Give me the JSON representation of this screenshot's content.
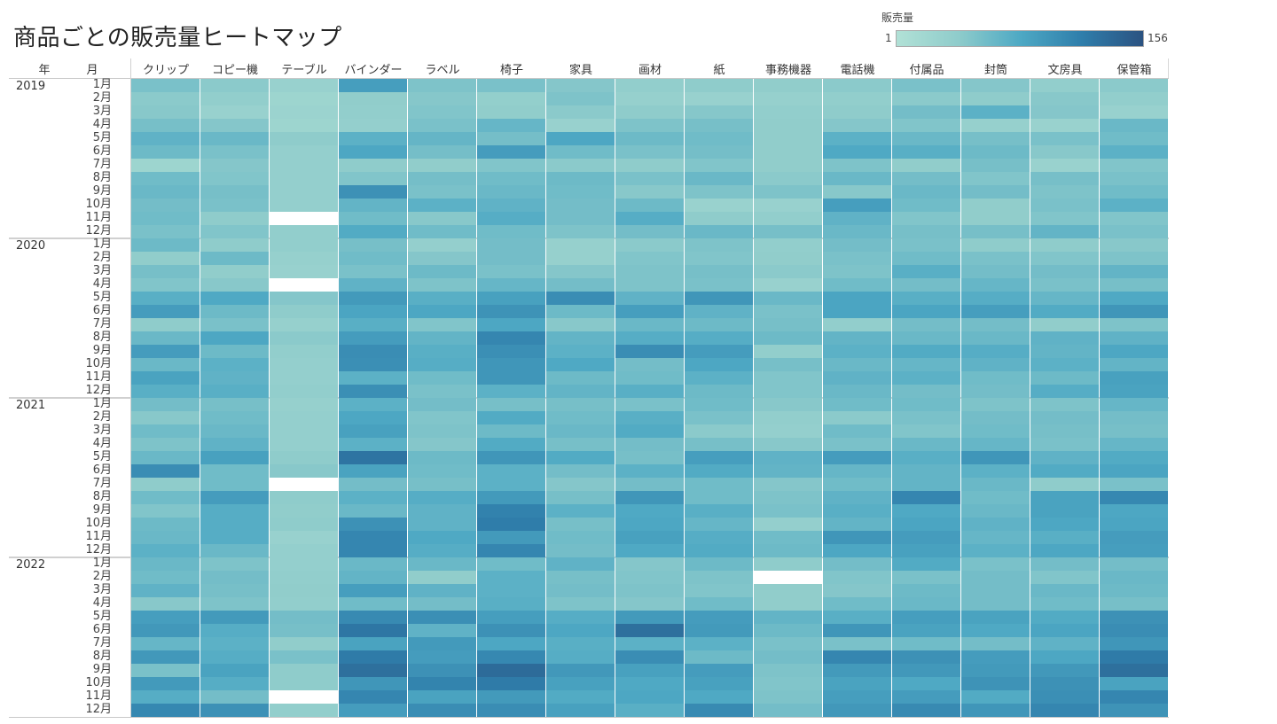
{
  "chart_data": {
    "type": "heatmap",
    "title": "商品ごとの販売量ヒートマップ",
    "legend": {
      "title": "販売量",
      "min": 1,
      "max": 156,
      "min_label": "1",
      "max_label": "156",
      "placement": "top-right",
      "colors": [
        "#b1e1d6",
        "#8fcccb",
        "#4ea9c4",
        "#2f7eab",
        "#2b5281"
      ],
      "missing_color": "#ffffff"
    },
    "row_header_year": "年",
    "row_header_month": "月",
    "categories": [
      "クリップ",
      "コピー機",
      "テーブル",
      "バインダー",
      "ラベル",
      "椅子",
      "家具",
      "画材",
      "紙",
      "事務機器",
      "電話機",
      "付属品",
      "封筒",
      "文房具",
      "保管箱"
    ],
    "months": [
      "1月",
      "2月",
      "3月",
      "4月",
      "5月",
      "6月",
      "7月",
      "8月",
      "9月",
      "10月",
      "11月",
      "12月"
    ],
    "years": [
      {
        "year": "2019",
        "values": [
          [
            52,
            42,
            30,
            88,
            50,
            52,
            46,
            36,
            40,
            38,
            42,
            52,
            46,
            36,
            42
          ],
          [
            42,
            36,
            24,
            38,
            45,
            35,
            50,
            32,
            30,
            32,
            36,
            42,
            40,
            44,
            36
          ],
          [
            44,
            30,
            26,
            36,
            48,
            38,
            42,
            40,
            45,
            36,
            40,
            56,
            70,
            46,
            30
          ],
          [
            54,
            46,
            24,
            34,
            52,
            64,
            30,
            50,
            54,
            38,
            46,
            48,
            32,
            28,
            62
          ],
          [
            68,
            62,
            40,
            70,
            65,
            55,
            80,
            60,
            58,
            38,
            70,
            62,
            54,
            52,
            58
          ],
          [
            60,
            52,
            34,
            80,
            55,
            90,
            58,
            52,
            55,
            38,
            78,
            72,
            60,
            44,
            70
          ],
          [
            24,
            46,
            34,
            40,
            38,
            48,
            42,
            40,
            48,
            38,
            50,
            38,
            54,
            28,
            48
          ],
          [
            58,
            48,
            34,
            48,
            55,
            58,
            60,
            52,
            62,
            42,
            62,
            56,
            48,
            54,
            52
          ],
          [
            62,
            54,
            34,
            100,
            52,
            62,
            58,
            44,
            50,
            50,
            44,
            62,
            56,
            50,
            58
          ],
          [
            56,
            52,
            34,
            66,
            70,
            68,
            56,
            60,
            28,
            30,
            88,
            58,
            38,
            52,
            70
          ],
          [
            58,
            40,
            null,
            58,
            44,
            74,
            56,
            74,
            40,
            36,
            68,
            48,
            38,
            48,
            48
          ],
          [
            52,
            48,
            36,
            76,
            58,
            58,
            50,
            56,
            62,
            54,
            62,
            54,
            54,
            66,
            52
          ]
        ]
      },
      {
        "year": "2020",
        "values": [
          [
            60,
            40,
            36,
            54,
            34,
            56,
            32,
            42,
            50,
            36,
            56,
            52,
            40,
            40,
            44
          ],
          [
            38,
            60,
            32,
            58,
            46,
            56,
            32,
            48,
            48,
            38,
            52,
            58,
            52,
            48,
            50
          ],
          [
            54,
            38,
            30,
            52,
            60,
            52,
            46,
            50,
            54,
            42,
            50,
            72,
            56,
            56,
            66
          ],
          [
            48,
            44,
            null,
            68,
            50,
            64,
            56,
            50,
            52,
            30,
            58,
            56,
            64,
            52,
            54
          ],
          [
            72,
            78,
            46,
            92,
            72,
            86,
            104,
            68,
            96,
            62,
            82,
            72,
            74,
            64,
            78
          ],
          [
            90,
            60,
            40,
            82,
            80,
            98,
            60,
            88,
            68,
            52,
            82,
            82,
            88,
            76,
            96
          ],
          [
            40,
            52,
            32,
            72,
            48,
            80,
            44,
            62,
            60,
            54,
            36,
            56,
            56,
            38,
            50
          ],
          [
            62,
            80,
            42,
            90,
            66,
            110,
            66,
            74,
            74,
            60,
            66,
            62,
            62,
            68,
            68
          ],
          [
            90,
            60,
            36,
            104,
            72,
            102,
            70,
            104,
            90,
            36,
            70,
            76,
            74,
            66,
            80
          ],
          [
            62,
            70,
            34,
            102,
            74,
            96,
            78,
            56,
            80,
            54,
            62,
            64,
            68,
            70,
            66
          ],
          [
            84,
            68,
            34,
            70,
            58,
            96,
            60,
            58,
            70,
            48,
            68,
            70,
            58,
            60,
            86
          ],
          [
            72,
            72,
            36,
            102,
            52,
            70,
            66,
            72,
            60,
            48,
            62,
            56,
            56,
            74,
            84
          ]
        ]
      },
      {
        "year": "2021",
        "values": [
          [
            56,
            54,
            32,
            70,
            56,
            54,
            54,
            52,
            58,
            44,
            58,
            58,
            50,
            50,
            64
          ],
          [
            44,
            58,
            34,
            80,
            48,
            76,
            58,
            72,
            52,
            36,
            42,
            52,
            56,
            56,
            56
          ],
          [
            58,
            62,
            34,
            86,
            50,
            60,
            62,
            76,
            42,
            34,
            58,
            48,
            58,
            54,
            54
          ],
          [
            50,
            68,
            34,
            70,
            46,
            76,
            54,
            56,
            54,
            44,
            52,
            62,
            64,
            52,
            64
          ],
          [
            62,
            86,
            40,
            126,
            60,
            96,
            76,
            54,
            88,
            68,
            90,
            72,
            96,
            68,
            76
          ],
          [
            104,
            58,
            44,
            84,
            58,
            70,
            56,
            70,
            76,
            66,
            64,
            66,
            70,
            76,
            82
          ],
          [
            40,
            58,
            null,
            56,
            54,
            70,
            46,
            56,
            58,
            46,
            58,
            66,
            62,
            40,
            52
          ],
          [
            58,
            90,
            40,
            70,
            74,
            92,
            54,
            96,
            58,
            50,
            68,
            110,
            58,
            84,
            108
          ],
          [
            48,
            74,
            38,
            62,
            68,
            114,
            70,
            78,
            72,
            52,
            72,
            78,
            62,
            84,
            80
          ],
          [
            60,
            74,
            40,
            100,
            68,
            118,
            54,
            80,
            64,
            34,
            66,
            82,
            68,
            80,
            82
          ],
          [
            62,
            74,
            30,
            110,
            78,
            92,
            58,
            86,
            74,
            58,
            96,
            90,
            64,
            72,
            90
          ],
          [
            70,
            62,
            34,
            110,
            74,
            110,
            56,
            78,
            76,
            60,
            80,
            86,
            70,
            80,
            88
          ]
        ]
      },
      {
        "year": "2022",
        "values": [
          [
            62,
            50,
            34,
            62,
            62,
            58,
            68,
            46,
            60,
            40,
            56,
            76,
            52,
            56,
            56
          ],
          [
            58,
            56,
            36,
            66,
            38,
            70,
            54,
            48,
            50,
            null,
            48,
            52,
            56,
            48,
            62
          ],
          [
            68,
            54,
            38,
            88,
            68,
            70,
            56,
            50,
            48,
            38,
            46,
            60,
            56,
            62,
            60
          ],
          [
            44,
            50,
            36,
            58,
            56,
            72,
            50,
            46,
            58,
            38,
            58,
            62,
            56,
            58,
            54
          ],
          [
            88,
            92,
            56,
            106,
            102,
            88,
            74,
            92,
            90,
            66,
            72,
            88,
            84,
            76,
            100
          ],
          [
            94,
            74,
            54,
            124,
            68,
            100,
            80,
            130,
            92,
            60,
            96,
            84,
            78,
            82,
            104
          ],
          [
            64,
            70,
            38,
            84,
            92,
            80,
            72,
            70,
            70,
            52,
            52,
            58,
            56,
            68,
            96
          ],
          [
            94,
            74,
            52,
            120,
            90,
            108,
            74,
            104,
            60,
            56,
            110,
            100,
            90,
            80,
            120
          ],
          [
            52,
            84,
            40,
            130,
            100,
            134,
            94,
            86,
            90,
            50,
            92,
            94,
            92,
            94,
            130
          ],
          [
            92,
            74,
            40,
            96,
            112,
            120,
            86,
            78,
            86,
            48,
            84,
            78,
            98,
            100,
            84
          ],
          [
            74,
            56,
            null,
            110,
            84,
            92,
            76,
            80,
            78,
            50,
            88,
            90,
            76,
            102,
            110
          ],
          [
            108,
            100,
            36,
            90,
            104,
            104,
            86,
            72,
            106,
            56,
            94,
            106,
            96,
            110,
            98
          ]
        ]
      }
    ]
  }
}
